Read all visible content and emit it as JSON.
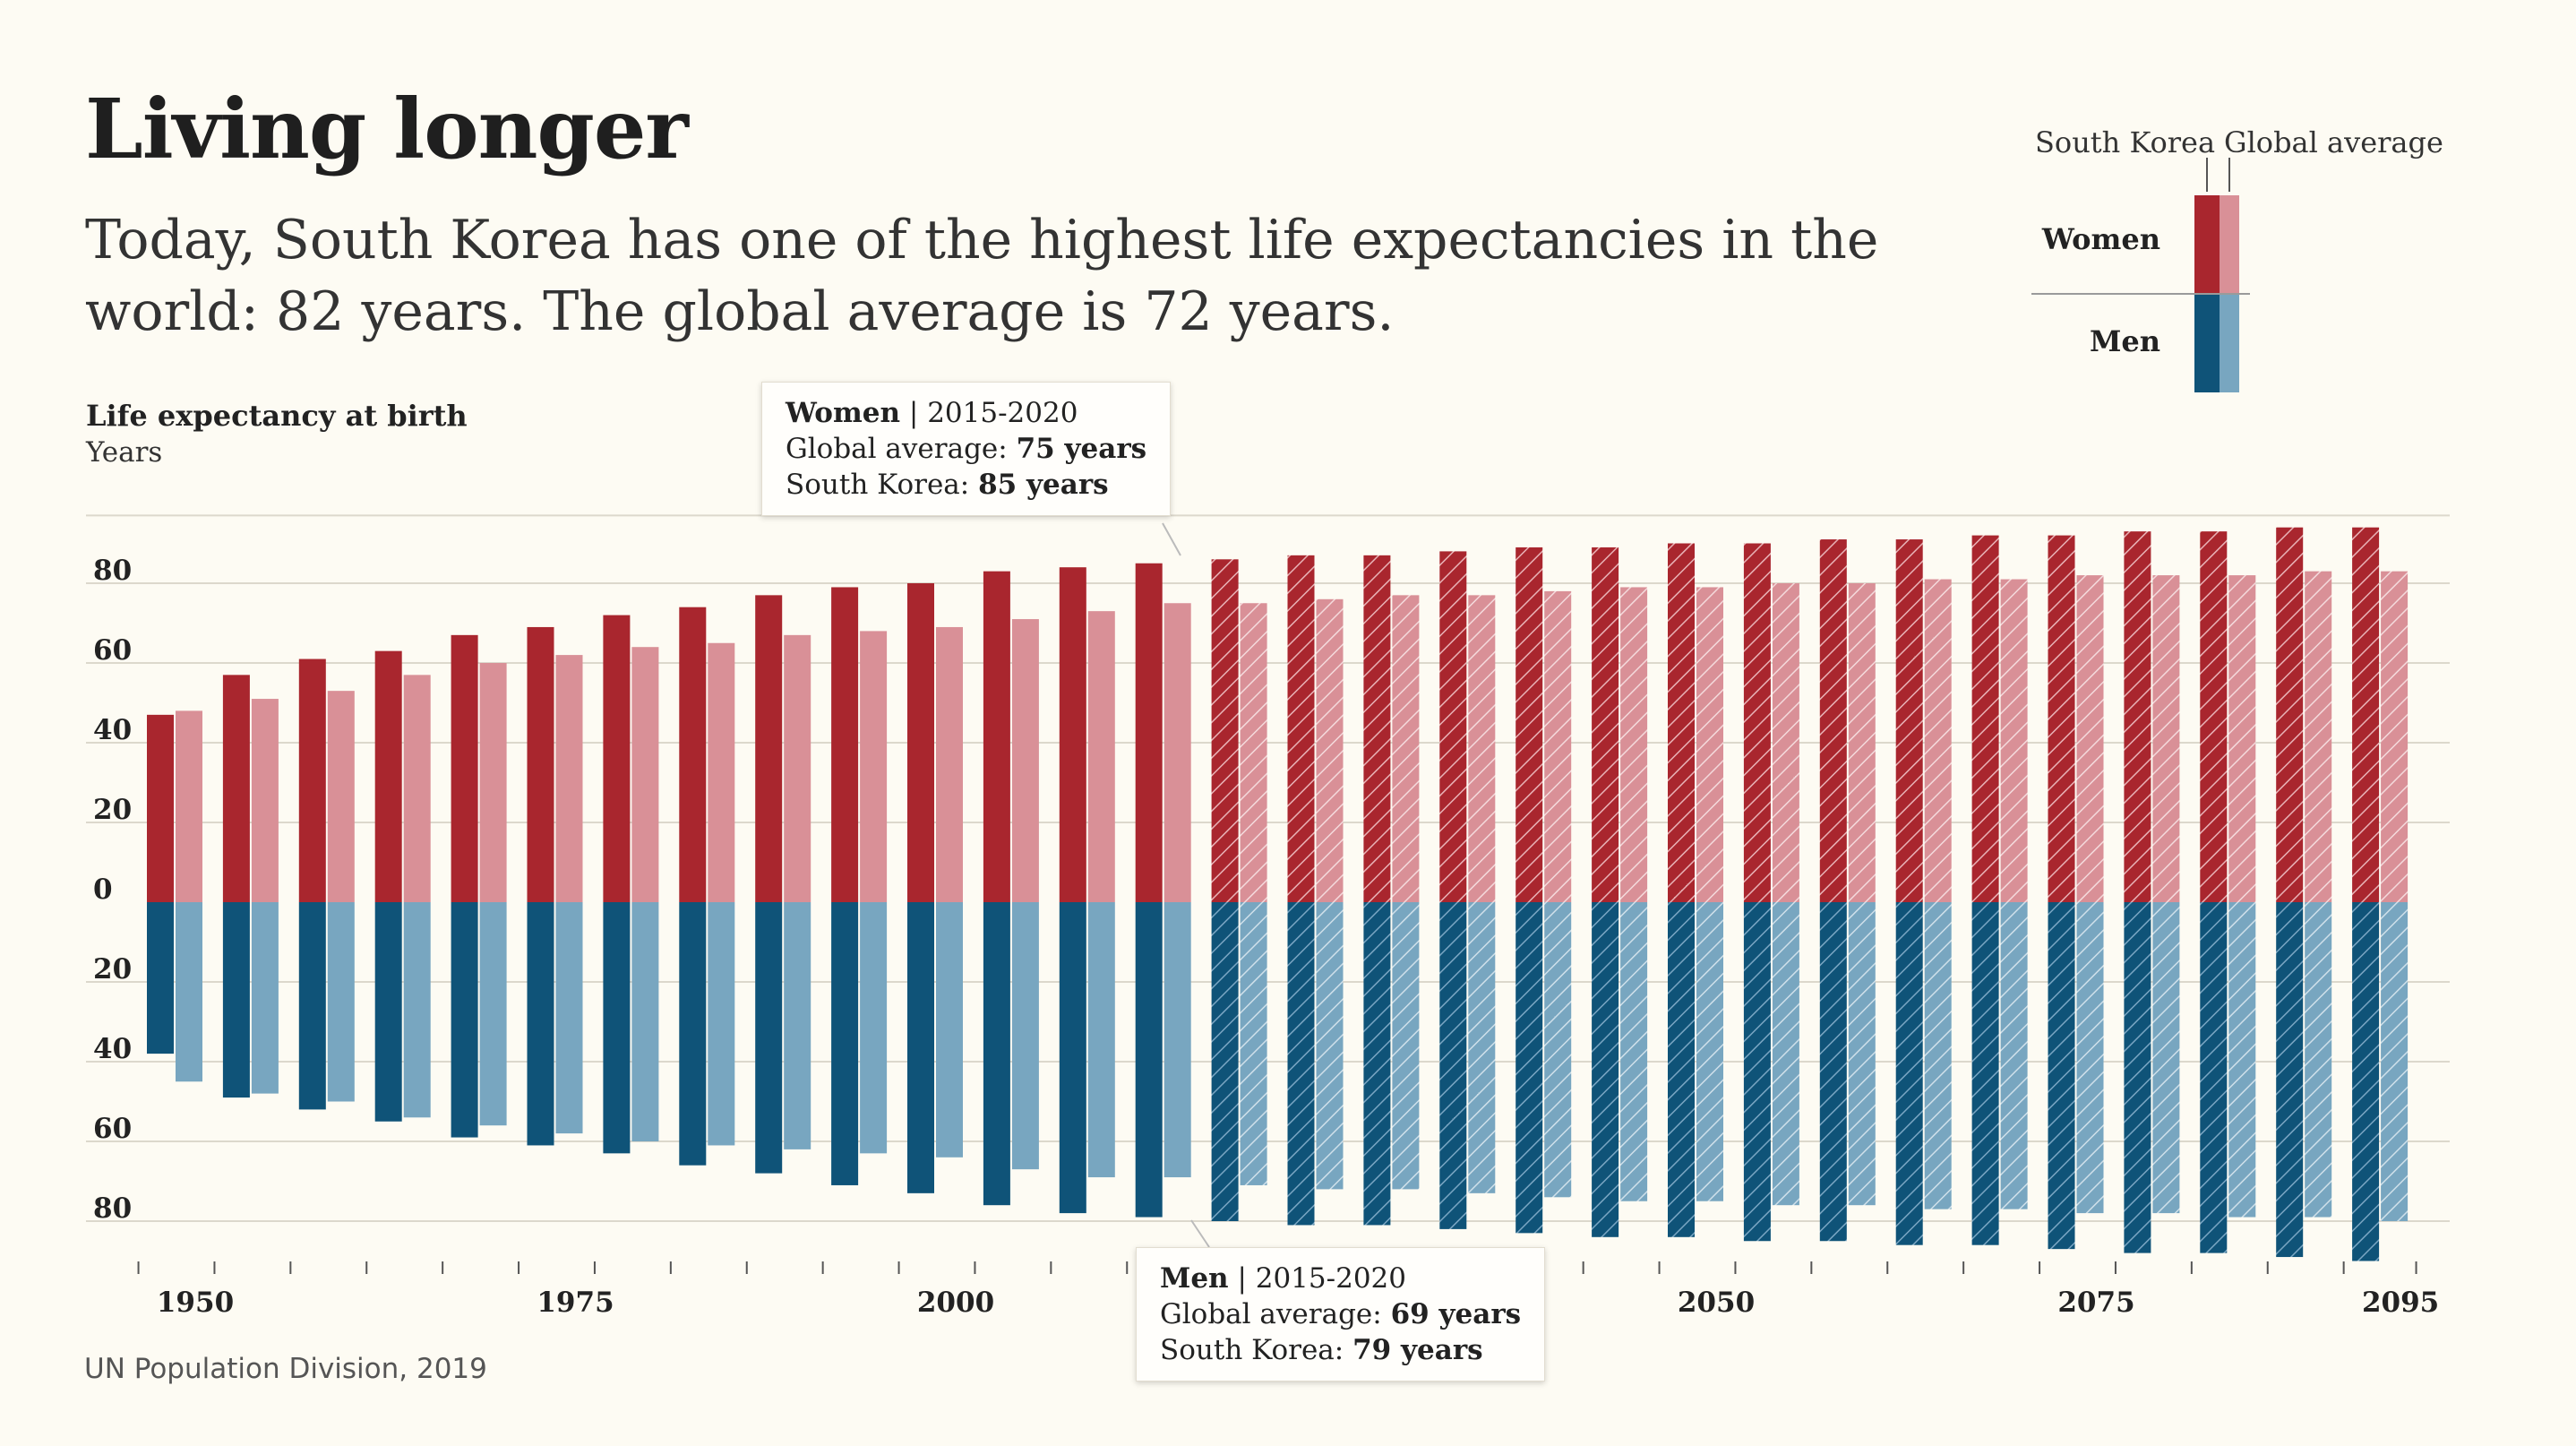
{
  "header": {
    "title": "Living longer",
    "subtitle": "Today, South Korea has one of the highest life expectancies in the world: 82 years. The global average is 72 years."
  },
  "axis_title": "Life expectancy at birth",
  "axis_unit": "Years",
  "legend": {
    "south_korea_label": "South Korea",
    "global_label": "Global average",
    "women_label": "Women",
    "men_label": "Men"
  },
  "tooltip_women": {
    "heading": "Women",
    "period": "| 2015-2020",
    "global_label": "Global average: ",
    "global_value": "75 years",
    "sk_label": "South Korea: ",
    "sk_value": "85 years"
  },
  "tooltip_men": {
    "heading": "Men",
    "period": "| 2015-2020",
    "global_label": "Global average: ",
    "global_value": "69 years",
    "sk_label": "South Korea: ",
    "sk_value": "79 years"
  },
  "source": "UN Population Division, 2019",
  "colors": {
    "sk_women": "#a9262e",
    "global_women": "#d99097",
    "sk_men": "#0f5378",
    "global_men": "#78a6c0",
    "background": "#fdfbf3"
  },
  "chart_data": {
    "type": "bar",
    "projection_start": "2020-2025",
    "categories": [
      "1950-1955",
      "1955-1960",
      "1960-1965",
      "1965-1970",
      "1970-1975",
      "1975-1980",
      "1980-1985",
      "1985-1990",
      "1990-1995",
      "1995-2000",
      "2000-2005",
      "2005-2010",
      "2010-2015",
      "2015-2020",
      "2020-2025",
      "2025-2030",
      "2030-2035",
      "2035-2040",
      "2040-2045",
      "2045-2050",
      "2050-2055",
      "2055-2060",
      "2060-2065",
      "2065-2070",
      "2070-2075",
      "2075-2080",
      "2080-2085",
      "2085-2090",
      "2090-2095",
      "2095-2100"
    ],
    "x_tick_labels": [
      {
        "label": "1950",
        "category_index": 0
      },
      {
        "label": "1975",
        "category_index": 5
      },
      {
        "label": "2000",
        "category_index": 10
      },
      {
        "label": "2050",
        "category_index": 20
      },
      {
        "label": "2075",
        "category_index": 25
      },
      {
        "label": "2095",
        "category_index": 29
      }
    ],
    "y_tick_labels": [
      "80",
      "60",
      "40",
      "20",
      "0",
      "20",
      "40",
      "60",
      "80"
    ],
    "ylim": [
      -90,
      90
    ],
    "series": [
      {
        "name": "South Korea",
        "group": "Women",
        "values": [
          47,
          57,
          61,
          63,
          67,
          69,
          72,
          74,
          77,
          79,
          80,
          83,
          84,
          85,
          86,
          87,
          87,
          88,
          89,
          89,
          90,
          90,
          91,
          91,
          92,
          92,
          93,
          93,
          94,
          94
        ]
      },
      {
        "name": "Global average",
        "group": "Women",
        "values": [
          48,
          51,
          53,
          57,
          60,
          62,
          64,
          65,
          67,
          68,
          69,
          71,
          73,
          75,
          75,
          76,
          77,
          77,
          78,
          79,
          79,
          80,
          80,
          81,
          81,
          82,
          82,
          82,
          83,
          83
        ]
      },
      {
        "name": "South Korea",
        "group": "Men",
        "values": [
          38,
          49,
          52,
          55,
          59,
          61,
          63,
          66,
          68,
          71,
          73,
          76,
          78,
          79,
          80,
          81,
          81,
          82,
          83,
          84,
          84,
          85,
          85,
          86,
          86,
          87,
          88,
          88,
          89,
          90
        ]
      },
      {
        "name": "Global average",
        "group": "Men",
        "values": [
          45,
          48,
          50,
          54,
          56,
          58,
          60,
          61,
          62,
          63,
          64,
          67,
          69,
          69,
          71,
          72,
          72,
          73,
          74,
          75,
          75,
          76,
          76,
          77,
          77,
          78,
          78,
          79,
          79,
          80
        ]
      }
    ]
  }
}
